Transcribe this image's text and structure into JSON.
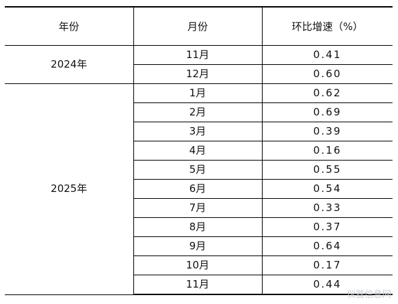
{
  "table": {
    "headers": [
      "年份",
      "月份",
      "环比增速（%）"
    ],
    "groups": [
      {
        "year": "2024年",
        "rows": [
          {
            "month": "11月",
            "value": "0.41"
          },
          {
            "month": "12月",
            "value": "0.60"
          }
        ]
      },
      {
        "year": "2025年",
        "rows": [
          {
            "month": "1月",
            "value": "0.62"
          },
          {
            "month": "2月",
            "value": "0.69"
          },
          {
            "month": "3月",
            "value": "0.39"
          },
          {
            "month": "4月",
            "value": "0.16"
          },
          {
            "month": "5月",
            "value": "0.55"
          },
          {
            "month": "6月",
            "value": "0.54"
          },
          {
            "month": "7月",
            "value": "0.33"
          },
          {
            "month": "8月",
            "value": "0.37"
          },
          {
            "month": "9月",
            "value": "0.64"
          },
          {
            "month": "10月",
            "value": "0.17"
          },
          {
            "month": "11月",
            "value": "0.44"
          }
        ]
      }
    ]
  },
  "watermark": "仪器信息网"
}
